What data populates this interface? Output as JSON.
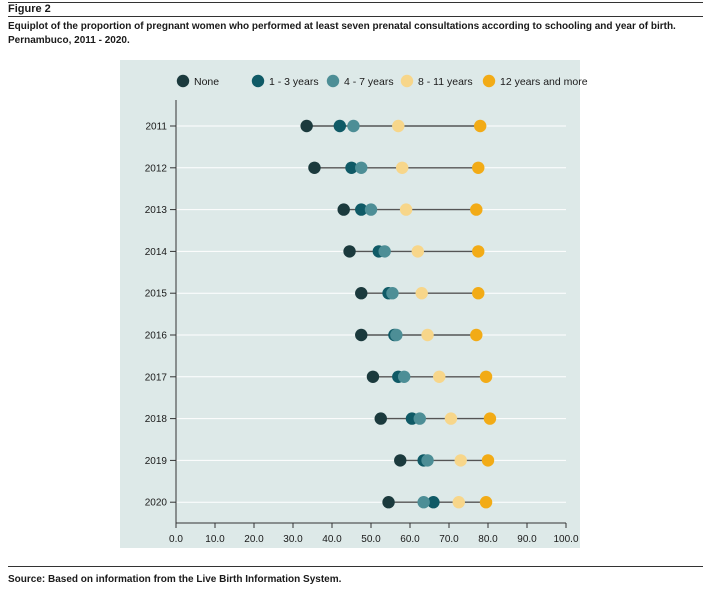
{
  "figure": {
    "label": "Figure 2",
    "caption": "Equiplot of the proportion of pregnant women who performed at least seven prenatal consultations according to schooling and year of birth. Pernambuco, 2011 - 2020.",
    "source": "Source: Based on information from the Live Birth Information System."
  },
  "colors": {
    "panel_bg": "#dde9e8",
    "grid": "#ffffff",
    "range_line": "#555555"
  },
  "chart_data": {
    "type": "scatter",
    "title": "",
    "xlabel": "",
    "ylabel": "",
    "xlim": [
      0,
      100
    ],
    "x_ticks": [
      "0.0",
      "10.0",
      "20.0",
      "30.0",
      "40.0",
      "50.0",
      "60.0",
      "70.0",
      "80.0",
      "90.0",
      "100.0"
    ],
    "categories": [
      "2011",
      "2012",
      "2013",
      "2014",
      "2015",
      "2016",
      "2017",
      "2018",
      "2019",
      "2020"
    ],
    "legend_position": "top",
    "series": [
      {
        "name": "None",
        "color": "#1b3a3d",
        "values": [
          33.5,
          35.5,
          43,
          44.5,
          47.5,
          47.5,
          50.5,
          52.5,
          57.5,
          54.5
        ]
      },
      {
        "name": "1 - 3 years",
        "color": "#0f5a66",
        "values": [
          42,
          45,
          47.5,
          52,
          54.5,
          56,
          57,
          60.5,
          63.5,
          66
        ]
      },
      {
        "name": "4 - 7 years",
        "color": "#4d8e96",
        "values": [
          45.5,
          47.5,
          50,
          53.5,
          55.5,
          56.5,
          58.5,
          62.5,
          64.5,
          63.5
        ]
      },
      {
        "name": "8 - 11 years",
        "color": "#f7d68a",
        "values": [
          57,
          58,
          59,
          62,
          63,
          64.5,
          67.5,
          70.5,
          73,
          72.5
        ]
      },
      {
        "name": "12 years and more",
        "color": "#f2ab16",
        "values": [
          78,
          77.5,
          77,
          77.5,
          77.5,
          77,
          79.5,
          80.5,
          80,
          79.5
        ]
      }
    ]
  }
}
